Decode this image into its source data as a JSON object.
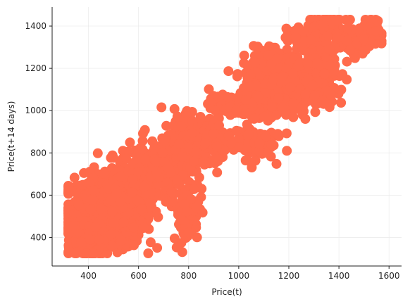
{
  "chart_data": {
    "type": "scatter",
    "title": "",
    "xlabel": "Price(t)",
    "ylabel": "Price(t+14 days)",
    "xlim": [
      255,
      1650
    ],
    "ylim": [
      265,
      1490
    ],
    "x_ticks": [
      400,
      600,
      800,
      1000,
      1200,
      1400,
      1600
    ],
    "y_ticks": [
      400,
      600,
      800,
      1000,
      1200,
      1400
    ],
    "grid": true,
    "legend": "none",
    "marker_color": "#ff6a4b",
    "clusters": [
      {
        "x": 470,
        "y": 520,
        "sx": 75,
        "sy": 85,
        "n": 900
      },
      {
        "x": 400,
        "y": 410,
        "sx": 35,
        "sy": 45,
        "n": 200
      },
      {
        "x": 560,
        "y": 620,
        "sx": 55,
        "sy": 70,
        "n": 220
      },
      {
        "x": 640,
        "y": 700,
        "sx": 50,
        "sy": 60,
        "n": 160
      },
      {
        "x": 760,
        "y": 780,
        "sx": 55,
        "sy": 70,
        "n": 240
      },
      {
        "x": 810,
        "y": 900,
        "sx": 35,
        "sy": 55,
        "n": 140
      },
      {
        "x": 790,
        "y": 520,
        "sx": 25,
        "sy": 70,
        "n": 110
      },
      {
        "x": 900,
        "y": 880,
        "sx": 35,
        "sy": 45,
        "n": 90
      },
      {
        "x": 960,
        "y": 1030,
        "sx": 40,
        "sy": 20,
        "n": 90
      },
      {
        "x": 1060,
        "y": 850,
        "sx": 40,
        "sy": 40,
        "n": 110
      },
      {
        "x": 1050,
        "y": 1010,
        "sx": 45,
        "sy": 25,
        "n": 80
      },
      {
        "x": 1150,
        "y": 1120,
        "sx": 65,
        "sy": 75,
        "n": 320
      },
      {
        "x": 1120,
        "y": 1240,
        "sx": 30,
        "sy": 30,
        "n": 90
      },
      {
        "x": 1250,
        "y": 1110,
        "sx": 45,
        "sy": 55,
        "n": 130
      },
      {
        "x": 1330,
        "y": 1200,
        "sx": 45,
        "sy": 80,
        "n": 150
      },
      {
        "x": 1350,
        "y": 1400,
        "sx": 40,
        "sy": 35,
        "n": 100
      },
      {
        "x": 1470,
        "y": 1340,
        "sx": 50,
        "sy": 30,
        "n": 110
      },
      {
        "x": 1260,
        "y": 1350,
        "sx": 40,
        "sy": 20,
        "n": 60
      },
      {
        "x": 1540,
        "y": 1380,
        "sx": 15,
        "sy": 35,
        "n": 50
      }
    ]
  }
}
